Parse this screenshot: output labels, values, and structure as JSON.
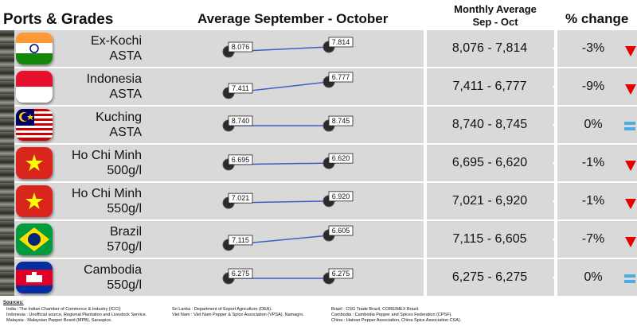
{
  "header": {
    "ports_title": "Ports & Grades",
    "avg_title": "Average September - October",
    "month_title_line1": "Monthly Average",
    "month_title_line2": "Sep - Oct",
    "change_title": "% change"
  },
  "colors": {
    "down_arrow": "#e60000",
    "equal": "#4aaee0",
    "line": "#3a62c4",
    "band": "#d9d9d9"
  },
  "rows": [
    {
      "flag": "india-flag",
      "port_line1": "Ex-Kochi",
      "port_line2": "ASTA",
      "sep_label": "8.076",
      "oct_label": "7.814",
      "range": "8,076 - 7,814",
      "pct": "-3%",
      "trend": "down"
    },
    {
      "flag": "indonesia-flag",
      "port_line1": "Indonesia",
      "port_line2": "ASTA",
      "sep_label": "7.411",
      "oct_label": "6.777",
      "range": "7,411 - 6,777",
      "pct": "-9%",
      "trend": "down"
    },
    {
      "flag": "malaysia-flag",
      "port_line1": "Kuching",
      "port_line2": "ASTA",
      "sep_label": "8.740",
      "oct_label": "8.745",
      "range": "8,740 - 8,745",
      "pct": "0%",
      "trend": "equal"
    },
    {
      "flag": "vietnam-flag",
      "port_line1": "Ho Chi Minh",
      "port_line2": "500g/l",
      "sep_label": "6.695",
      "oct_label": "6.620",
      "range": "6,695 - 6,620",
      "pct": "-1%",
      "trend": "down"
    },
    {
      "flag": "vietnam-flag",
      "port_line1": "Ho Chi Minh",
      "port_line2": "550g/l",
      "sep_label": "7.021",
      "oct_label": "6.920",
      "range": "7,021 - 6,920",
      "pct": "-1%",
      "trend": "down"
    },
    {
      "flag": "brazil-flag",
      "port_line1": "Brazil",
      "port_line2": "570g/l",
      "sep_label": "7.115",
      "oct_label": "6.605",
      "range": "7,115 - 6,605",
      "pct": "-7%",
      "trend": "down"
    },
    {
      "flag": "cambodia-flag",
      "port_line1": "Cambodia",
      "port_line2": "550g/l",
      "sep_label": "6.275",
      "oct_label": "6.275",
      "range": "6,275 - 6,275",
      "pct": "0%",
      "trend": "equal"
    }
  ],
  "chart_data": {
    "type": "line",
    "title": "Average September - October",
    "categories": [
      "Sep",
      "Oct"
    ],
    "series": [
      {
        "name": "Ex-Kochi ASTA",
        "values": [
          8076,
          7814
        ]
      },
      {
        "name": "Indonesia ASTA",
        "values": [
          7411,
          6777
        ]
      },
      {
        "name": "Kuching ASTA",
        "values": [
          8740,
          8745
        ]
      },
      {
        "name": "Ho Chi Minh 500g/l",
        "values": [
          6695,
          6620
        ]
      },
      {
        "name": "Ho Chi Minh 550g/l",
        "values": [
          7021,
          6920
        ]
      },
      {
        "name": "Brazil 570g/l",
        "values": [
          7115,
          6605
        ]
      },
      {
        "name": "Cambodia 550g/l",
        "values": [
          6275,
          6275
        ]
      }
    ]
  },
  "sources": {
    "title": "Sources:",
    "col1": [
      "India : The Indian Chamber of Commerce & Industry (ICCI)",
      "Indonesia : Unofficial source, Regional Plantation and Livestock Service.",
      "Malaysia : Malaysian Pepper Board (MPB), Saraspice."
    ],
    "col2": [
      "Sri Lanka : Department of Export Agriculture (DEA).",
      "Viet Nam : Viet Nam Pepper & Spice Association (VPSA). Namagro."
    ],
    "col3": [
      "Brazil : CSG Trade Brazil, COREIMEX Brazil.",
      "Cambodia : Cambodia Pepper and Spices Federation (CPSF).",
      "China : Hainan Pepper Association, China Spice Association CSA)."
    ]
  }
}
